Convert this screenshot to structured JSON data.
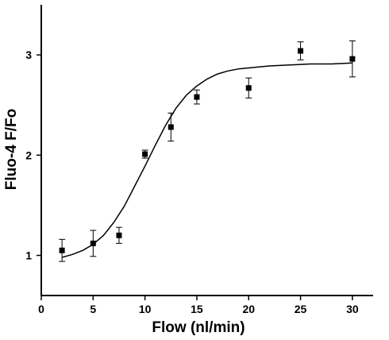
{
  "chart_data": {
    "type": "scatter",
    "title": "",
    "xlabel": "Flow (nl/min)",
    "ylabel": "Fluo-4 F/Fo",
    "xlim": [
      0,
      32
    ],
    "ylim": [
      0.6,
      3.5
    ],
    "x_ticks": [
      0,
      5,
      10,
      15,
      20,
      25,
      30
    ],
    "y_ticks": [
      1,
      2,
      3
    ],
    "grid": false,
    "legend": "none",
    "marker_color": "#000000",
    "series": [
      {
        "x": [
          2,
          5,
          7.5,
          10,
          12.5,
          15,
          20,
          25,
          30
        ],
        "y": [
          1.05,
          1.12,
          1.2,
          2.01,
          2.28,
          2.58,
          2.67,
          3.04,
          2.96
        ],
        "error": [
          0.11,
          0.13,
          0.08,
          0.04,
          0.14,
          0.07,
          0.1,
          0.09,
          0.18
        ]
      }
    ],
    "fit_curve": {
      "type": "sigmoid",
      "x": [
        2,
        3,
        4,
        5,
        6,
        7,
        8,
        9,
        10,
        11,
        12,
        13,
        14,
        15,
        16,
        17,
        18,
        19,
        20,
        22,
        24,
        26,
        28,
        30
      ],
      "y": [
        0.98,
        1.01,
        1.05,
        1.11,
        1.2,
        1.33,
        1.49,
        1.69,
        1.89,
        2.1,
        2.3,
        2.47,
        2.6,
        2.69,
        2.76,
        2.81,
        2.84,
        2.86,
        2.87,
        2.89,
        2.9,
        2.91,
        2.91,
        2.92
      ]
    }
  }
}
